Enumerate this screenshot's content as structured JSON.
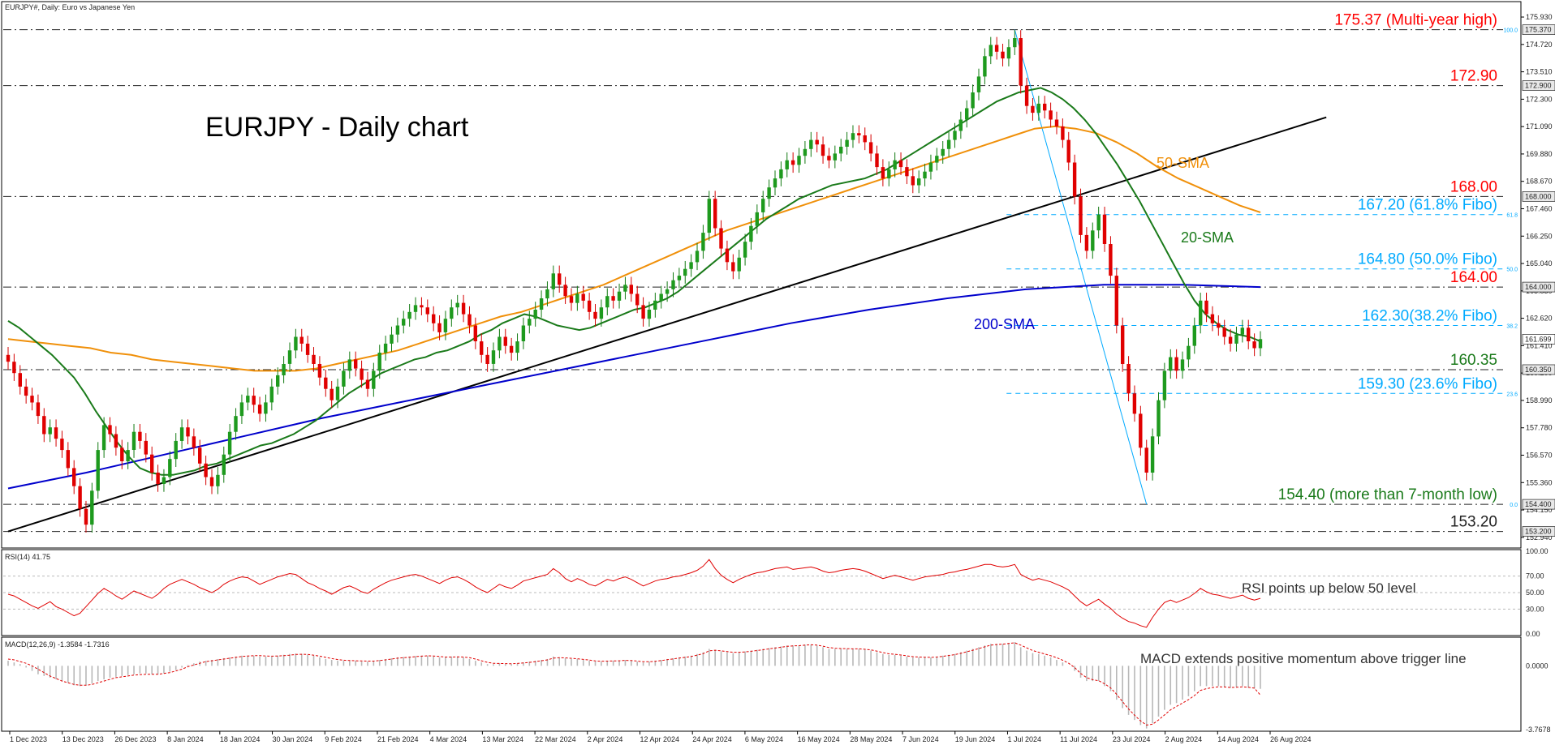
{
  "window": {
    "title": "EURJPY#, Daily: Euro vs Japanese Yen"
  },
  "chart_data": [
    {
      "type": "candlestick",
      "title": "EURJPY - Daily chart",
      "ylim": [
        152.54,
        176.54
      ],
      "x_ticks": [
        "1 Dec 2023",
        "13 Dec 2023",
        "26 Dec 2023",
        "8 Jan 2024",
        "18 Jan 2024",
        "30 Jan 2024",
        "9 Feb 2024",
        "21 Feb 2024",
        "4 Mar 2024",
        "13 Mar 2024",
        "22 Mar 2024",
        "2 Apr 2024",
        "12 Apr 2024",
        "24 Apr 2024",
        "6 May 2024",
        "16 May 2024",
        "28 May 2024",
        "7 Jun 2024",
        "19 Jun 2024",
        "1 Jul 2024",
        "11 Jul 2024",
        "23 Jul 2024",
        "2 Aug 2024",
        "14 Aug 2024",
        "26 Aug 2024"
      ],
      "y_ticks": [
        "175.930",
        "174.720",
        "173.510",
        "172.300",
        "171.090",
        "169.880",
        "168.670",
        "167.460",
        "166.250",
        "165.040",
        "163.830",
        "162.620",
        "161.410",
        "160.200",
        "158.990",
        "157.780",
        "156.570",
        "155.360",
        "154.150",
        "152.940"
      ],
      "price_labels": [
        {
          "value": "175.370",
          "y": 175.37
        },
        {
          "value": "172.900",
          "y": 172.9
        },
        {
          "value": "168.000",
          "y": 168.0
        },
        {
          "value": "164.000",
          "y": 164.0
        },
        {
          "value": "161.699",
          "y": 161.699
        },
        {
          "value": "160.350",
          "y": 160.35
        },
        {
          "value": "154.400",
          "y": 154.4
        },
        {
          "value": "153.200",
          "y": 153.2
        }
      ],
      "fib_scale": [
        {
          "label": "100.0",
          "y": 175.37
        },
        {
          "label": "61.8",
          "y": 167.2
        },
        {
          "label": "50.0",
          "y": 164.8
        },
        {
          "label": "38.2",
          "y": 162.3
        },
        {
          "label": "23.6",
          "y": 159.3
        },
        {
          "label": "0.0",
          "y": 154.4
        }
      ],
      "levels": [
        {
          "text": "175.37 (Multi-year high)",
          "y": 175.37,
          "color": "#ff0000",
          "style": "dashdot",
          "x_from": 0
        },
        {
          "text": "172.90",
          "y": 172.9,
          "color": "#ff0000",
          "style": "dashdot",
          "x_from": 0
        },
        {
          "text": "168.00",
          "y": 168.0,
          "color": "#ff0000",
          "style": "dashdot",
          "x_from": 0
        },
        {
          "text": "167.20 (61.8% Fibo)",
          "y": 167.2,
          "color": "#00aaff",
          "style": "fibo",
          "x_from": 0.66
        },
        {
          "text": "164.80 (50.0% Fibo)",
          "y": 164.8,
          "color": "#00aaff",
          "style": "fibo",
          "x_from": 0.66
        },
        {
          "text": "164.00",
          "y": 164.0,
          "color": "#ff0000",
          "style": "dashdot",
          "x_from": 0
        },
        {
          "text": "162.30(38.2% Fibo)",
          "y": 162.3,
          "color": "#00aaff",
          "style": "fibo",
          "x_from": 0.66
        },
        {
          "text": "160.35",
          "y": 160.35,
          "color": "#1a7a1a",
          "style": "dashdot",
          "x_from": 0
        },
        {
          "text": "159.30 (23.6% Fibo)",
          "y": 159.3,
          "color": "#00aaff",
          "style": "fibo",
          "x_from": 0.66
        },
        {
          "text": "154.40 (more than 7-month low)",
          "y": 154.4,
          "color": "#1a7a1a",
          "style": "dashdot",
          "x_from": 0
        },
        {
          "text": "153.20",
          "y": 153.2,
          "color": "#222222",
          "style": "dashdot",
          "x_from": 0
        }
      ],
      "annotations": [
        {
          "text": "50-SMA",
          "color": "#f0900a"
        },
        {
          "text": "20-SMA",
          "color": "#1a7a1a"
        },
        {
          "text": "200-SMA",
          "color": "#0000cc"
        }
      ],
      "closes": [
        160.7,
        160.2,
        159.6,
        159.2,
        158.9,
        158.3,
        157.5,
        157.8,
        157.3,
        156.8,
        156.0,
        155.2,
        154.2,
        153.5,
        155.0,
        156.8,
        157.9,
        157.5,
        156.9,
        156.3,
        156.8,
        157.6,
        157.2,
        156.6,
        155.8,
        155.3,
        155.6,
        156.4,
        157.2,
        157.8,
        157.4,
        156.9,
        156.2,
        155.6,
        155.2,
        155.7,
        156.6,
        157.6,
        158.3,
        158.9,
        159.2,
        158.8,
        158.4,
        158.9,
        159.6,
        160.1,
        160.6,
        161.2,
        161.8,
        161.5,
        161.0,
        160.6,
        160.0,
        159.5,
        159.0,
        159.6,
        160.3,
        160.8,
        160.4,
        159.9,
        159.5,
        160.3,
        161.1,
        161.5,
        161.9,
        162.3,
        162.6,
        162.9,
        163.2,
        163.1,
        162.8,
        162.4,
        162.0,
        162.6,
        163.1,
        163.3,
        162.8,
        162.3,
        161.6,
        161.0,
        160.6,
        161.2,
        161.8,
        161.4,
        161.1,
        161.6,
        162.3,
        162.6,
        163.0,
        163.5,
        163.9,
        164.6,
        164.1,
        163.6,
        163.3,
        163.7,
        163.4,
        162.9,
        162.6,
        163.1,
        163.6,
        163.4,
        163.8,
        164.1,
        163.7,
        163.2,
        162.6,
        163.0,
        163.4,
        163.7,
        163.9,
        164.3,
        164.5,
        164.8,
        165.1,
        165.6,
        166.4,
        167.9,
        166.6,
        165.7,
        165.1,
        164.7,
        165.3,
        166.0,
        166.7,
        167.3,
        167.9,
        168.4,
        168.8,
        169.2,
        169.6,
        169.4,
        169.8,
        170.1,
        170.5,
        170.3,
        169.8,
        169.6,
        169.9,
        170.2,
        170.5,
        170.8,
        170.7,
        170.4,
        169.9,
        169.3,
        168.8,
        169.2,
        169.6,
        169.3,
        168.9,
        168.5,
        168.8,
        169.1,
        169.5,
        169.8,
        170.1,
        170.5,
        170.9,
        171.4,
        171.9,
        172.6,
        173.3,
        174.2,
        174.7,
        174.4,
        174.1,
        174.6,
        175.0,
        172.9,
        172.0,
        171.7,
        172.1,
        171.8,
        171.4,
        171.1,
        170.5,
        169.5,
        168.0,
        166.3,
        165.6,
        166.5,
        167.2,
        165.9,
        164.5,
        162.3,
        160.6,
        159.3,
        158.4,
        156.9,
        155.8,
        157.4,
        159.0,
        160.3,
        160.9,
        160.3,
        160.8,
        161.4,
        162.3,
        163.4,
        162.8,
        162.4,
        162.2,
        161.8,
        161.5,
        161.9,
        162.2,
        161.6,
        161.3,
        161.7
      ],
      "sma20": [
        162.5,
        162.2,
        161.8,
        161.4,
        161.0,
        160.5,
        160.0,
        159.3,
        158.5,
        157.8,
        157.1,
        156.5,
        156.0,
        155.8,
        155.7,
        155.7,
        155.8,
        155.9,
        156.1,
        156.2,
        156.4,
        156.6,
        156.8,
        157.0,
        157.1,
        157.3,
        157.5,
        157.8,
        158.1,
        158.5,
        158.9,
        159.3,
        159.6,
        159.9,
        160.2,
        160.4,
        160.6,
        160.8,
        160.9,
        161.1,
        161.2,
        161.4,
        161.6,
        161.9,
        162.1,
        162.4,
        162.6,
        162.8,
        162.7,
        162.5,
        162.3,
        162.2,
        162.1,
        162.2,
        162.4,
        162.6,
        162.8,
        163.0,
        163.1,
        163.3,
        163.5,
        163.8,
        164.2,
        164.6,
        165.0,
        165.4,
        165.8,
        166.2,
        166.6,
        167.0,
        167.3,
        167.6,
        167.9,
        168.1,
        168.3,
        168.5,
        168.6,
        168.7,
        168.8,
        169.0,
        169.2,
        169.5,
        169.8,
        170.1,
        170.4,
        170.7,
        171.0,
        171.3,
        171.6,
        171.9,
        172.2,
        172.4,
        172.6,
        172.7,
        172.8,
        172.6,
        172.3,
        171.9,
        171.4,
        170.8,
        170.1,
        169.4,
        168.6,
        167.8,
        166.9,
        166.0,
        165.1,
        164.2,
        163.4,
        162.8,
        162.4,
        162.1,
        161.9,
        161.8,
        161.6
      ],
      "sma50": [
        161.7,
        161.6,
        161.5,
        161.4,
        161.3,
        161.1,
        161.0,
        160.8,
        160.7,
        160.6,
        160.5,
        160.4,
        160.3,
        160.3,
        160.3,
        160.4,
        160.6,
        160.8,
        161.0,
        161.2,
        161.5,
        161.8,
        162.1,
        162.4,
        162.7,
        162.9,
        163.2,
        163.5,
        163.8,
        164.1,
        164.5,
        164.9,
        165.3,
        165.7,
        166.1,
        166.5,
        166.8,
        167.1,
        167.4,
        167.7,
        168.0,
        168.3,
        168.6,
        168.9,
        169.2,
        169.5,
        169.8,
        170.1,
        170.4,
        170.7,
        171.0,
        171.1,
        171.0,
        170.8,
        170.4,
        169.9,
        169.3,
        168.8,
        168.4,
        168.0,
        167.6,
        167.3
      ],
      "sma200": [
        155.1,
        155.8,
        156.6,
        157.4,
        158.2,
        158.9,
        159.6,
        160.3,
        161.0,
        161.7,
        162.4,
        163.0,
        163.5,
        163.9,
        164.1,
        164.1,
        164.0
      ],
      "trendline": [
        [
          0,
          153.2
        ],
        [
          220,
          171.5
        ]
      ]
    },
    {
      "type": "line",
      "title": "RSI(14) 41.75",
      "ylim": [
        0,
        100
      ],
      "y_ticks": [
        "100.00",
        "70.00",
        "50.00",
        "30.00",
        "0.00"
      ],
      "annotation": "RSI points up below 50 level",
      "values": [
        48,
        46,
        42,
        38,
        34,
        31,
        35,
        39,
        33,
        30,
        26,
        22,
        25,
        33,
        41,
        49,
        55,
        51,
        46,
        42,
        47,
        52,
        49,
        46,
        43,
        48,
        55,
        60,
        63,
        66,
        63,
        60,
        56,
        53,
        50,
        54,
        60,
        64,
        67,
        69,
        68,
        64,
        60,
        63,
        66,
        69,
        71,
        73,
        72,
        67,
        62,
        59,
        55,
        52,
        48,
        52,
        56,
        58,
        55,
        51,
        49,
        54,
        58,
        62,
        65,
        67,
        69,
        71,
        72,
        70,
        67,
        64,
        61,
        65,
        68,
        69,
        66,
        62,
        57,
        53,
        50,
        55,
        60,
        57,
        55,
        59,
        64,
        66,
        68,
        70,
        72,
        79,
        74,
        67,
        63,
        67,
        64,
        60,
        58,
        62,
        66,
        64,
        67,
        69,
        66,
        62,
        58,
        61,
        64,
        66,
        67,
        69,
        70,
        72,
        74,
        77,
        82,
        90,
        79,
        71,
        66,
        62,
        66,
        69,
        72,
        74,
        75,
        77,
        79,
        80,
        81,
        78,
        79,
        80,
        81,
        79,
        76,
        74,
        75,
        77,
        78,
        79,
        78,
        76,
        73,
        70,
        67,
        69,
        71,
        69,
        67,
        65,
        67,
        69,
        70,
        71,
        72,
        74,
        75,
        77,
        78,
        80,
        82,
        84,
        84,
        82,
        81,
        82,
        84,
        72,
        68,
        65,
        67,
        65,
        63,
        60,
        57,
        53,
        46,
        39,
        34,
        38,
        42,
        36,
        31,
        24,
        19,
        15,
        13,
        10,
        8,
        20,
        30,
        38,
        41,
        38,
        41,
        44,
        49,
        55,
        51,
        48,
        47,
        45,
        43,
        45,
        47,
        43,
        41,
        43
      ]
    },
    {
      "type": "bar",
      "title": "MACD(12,26,9) -1.3584 -1.7316",
      "ylim": [
        -3.7678,
        1.5
      ],
      "y_ticks": [
        "0.0000",
        "-3.7678"
      ],
      "annotation": "MACD extends positive momentum above trigger line",
      "histogram": [
        0.3,
        0.2,
        0.1,
        -0.1,
        -0.3,
        -0.5,
        -0.6,
        -0.7,
        -0.8,
        -0.9,
        -1.0,
        -1.15,
        -1.2,
        -1.15,
        -1.05,
        -0.9,
        -0.8,
        -0.7,
        -0.65,
        -0.6,
        -0.55,
        -0.5,
        -0.45,
        -0.45,
        -0.5,
        -0.5,
        -0.45,
        -0.35,
        -0.25,
        -0.1,
        0.05,
        0.15,
        0.25,
        0.3,
        0.35,
        0.4,
        0.45,
        0.5,
        0.55,
        0.6,
        0.6,
        0.6,
        0.55,
        0.55,
        0.55,
        0.6,
        0.65,
        0.7,
        0.72,
        0.7,
        0.65,
        0.6,
        0.5,
        0.4,
        0.35,
        0.3,
        0.3,
        0.3,
        0.3,
        0.25,
        0.25,
        0.3,
        0.35,
        0.4,
        0.45,
        0.5,
        0.52,
        0.55,
        0.58,
        0.6,
        0.6,
        0.55,
        0.5,
        0.5,
        0.55,
        0.55,
        0.5,
        0.4,
        0.3,
        0.2,
        0.1,
        0.1,
        0.15,
        0.1,
        0.1,
        0.15,
        0.2,
        0.25,
        0.3,
        0.35,
        0.4,
        0.55,
        0.5,
        0.45,
        0.4,
        0.4,
        0.35,
        0.3,
        0.25,
        0.25,
        0.3,
        0.3,
        0.3,
        0.35,
        0.3,
        0.25,
        0.2,
        0.25,
        0.3,
        0.35,
        0.4,
        0.45,
        0.5,
        0.55,
        0.6,
        0.7,
        0.8,
        1.0,
        0.95,
        0.85,
        0.8,
        0.75,
        0.8,
        0.85,
        0.9,
        0.95,
        1.0,
        1.05,
        1.1,
        1.15,
        1.2,
        1.2,
        1.2,
        1.25,
        1.25,
        1.2,
        1.1,
        1.0,
        1.0,
        1.0,
        1.0,
        1.0,
        1.0,
        0.95,
        0.9,
        0.8,
        0.7,
        0.65,
        0.65,
        0.6,
        0.55,
        0.5,
        0.5,
        0.5,
        0.5,
        0.55,
        0.6,
        0.65,
        0.7,
        0.8,
        0.9,
        1.0,
        1.1,
        1.2,
        1.3,
        1.3,
        1.3,
        1.35,
        1.4,
        1.1,
        0.9,
        0.75,
        0.7,
        0.6,
        0.5,
        0.35,
        0.2,
        0.0,
        -0.3,
        -0.7,
        -0.9,
        -0.9,
        -0.9,
        -1.2,
        -1.5,
        -2.0,
        -2.5,
        -2.9,
        -3.2,
        -3.5,
        -3.7,
        -3.4,
        -3.0,
        -2.6,
        -2.3,
        -2.2,
        -2.0,
        -1.8,
        -1.5,
        -1.2,
        -1.2,
        -1.2,
        -1.2,
        -1.25,
        -1.3,
        -1.25,
        -1.2,
        -1.3,
        -1.35,
        -1.36
      ],
      "signal": [
        0.4,
        0.35,
        0.25,
        0.15,
        0.0,
        -0.2,
        -0.4,
        -0.6,
        -0.75,
        -0.9,
        -1.0,
        -1.1,
        -1.15,
        -1.15,
        -1.1,
        -1.0,
        -0.9,
        -0.8,
        -0.7,
        -0.65,
        -0.6,
        -0.55,
        -0.52,
        -0.5,
        -0.5,
        -0.5,
        -0.45,
        -0.4,
        -0.3,
        -0.2,
        -0.05,
        0.05,
        0.15,
        0.25,
        0.3,
        0.35,
        0.4,
        0.45,
        0.5,
        0.55,
        0.58,
        0.6,
        0.6,
        0.58,
        0.57,
        0.58,
        0.6,
        0.63,
        0.67,
        0.68,
        0.67,
        0.63,
        0.57,
        0.5,
        0.43,
        0.37,
        0.33,
        0.31,
        0.3,
        0.29,
        0.28,
        0.28,
        0.31,
        0.35,
        0.4,
        0.45,
        0.48,
        0.51,
        0.54,
        0.57,
        0.59,
        0.58,
        0.55,
        0.52,
        0.52,
        0.53,
        0.52,
        0.48,
        0.4,
        0.3,
        0.2,
        0.15,
        0.14,
        0.13,
        0.12,
        0.14,
        0.17,
        0.2,
        0.25,
        0.3,
        0.35,
        0.45,
        0.48,
        0.47,
        0.44,
        0.42,
        0.38,
        0.34,
        0.29,
        0.27,
        0.28,
        0.29,
        0.3,
        0.32,
        0.31,
        0.28,
        0.24,
        0.24,
        0.27,
        0.31,
        0.36,
        0.41,
        0.46,
        0.5,
        0.55,
        0.63,
        0.72,
        0.88,
        0.92,
        0.88,
        0.84,
        0.8,
        0.8,
        0.82,
        0.86,
        0.9,
        0.95,
        1.0,
        1.05,
        1.1,
        1.15,
        1.18,
        1.19,
        1.22,
        1.24,
        1.22,
        1.16,
        1.08,
        1.04,
        1.02,
        1.01,
        1.0,
        1.0,
        0.98,
        0.94,
        0.87,
        0.78,
        0.71,
        0.68,
        0.64,
        0.59,
        0.54,
        0.52,
        0.51,
        0.5,
        0.52,
        0.56,
        0.61,
        0.66,
        0.74,
        0.83,
        0.92,
        1.02,
        1.12,
        1.22,
        1.26,
        1.28,
        1.32,
        1.36,
        1.22,
        1.06,
        0.9,
        0.8,
        0.7,
        0.6,
        0.48,
        0.33,
        0.15,
        -0.1,
        -0.45,
        -0.7,
        -0.82,
        -0.88,
        -1.06,
        -1.3,
        -1.68,
        -2.12,
        -2.55,
        -2.92,
        -3.25,
        -3.5,
        -3.45,
        -3.2,
        -2.9,
        -2.6,
        -2.4,
        -2.2,
        -2.0,
        -1.75,
        -1.45,
        -1.35,
        -1.28,
        -1.24,
        -1.25,
        -1.28,
        -1.27,
        -1.24,
        -1.27,
        -1.32,
        -1.73
      ]
    }
  ]
}
